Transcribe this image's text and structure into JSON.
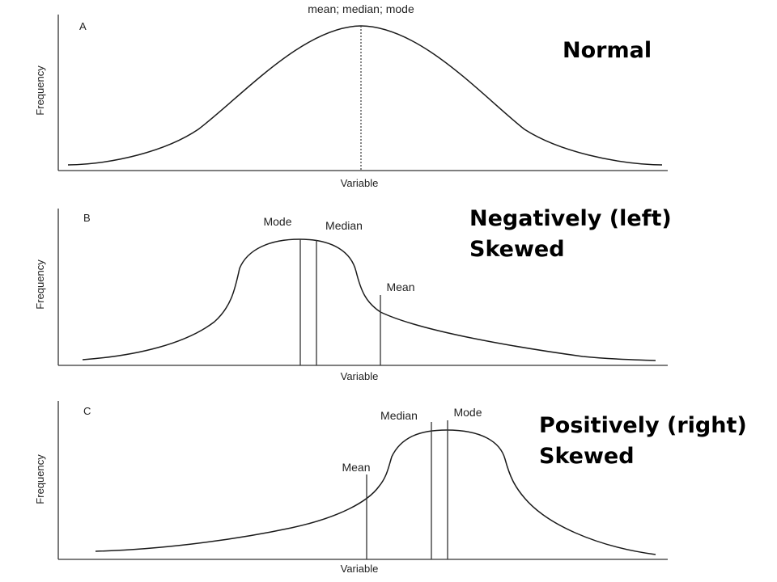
{
  "panels": [
    {
      "id": "A",
      "letter": "A",
      "y_label": "Frequency",
      "x_label": "Variable",
      "marker_caption": "mean; median; mode",
      "annotation": [
        "Normal"
      ]
    },
    {
      "id": "B",
      "letter": "B",
      "y_label": "Frequency",
      "x_label": "Variable",
      "markers": [
        "Mode",
        "Median",
        "Mean"
      ],
      "annotation": [
        "Negatively (left)",
        "Skewed"
      ]
    },
    {
      "id": "C",
      "letter": "C",
      "y_label": "Frequency",
      "x_label": "Variable",
      "markers": [
        "Mean",
        "Median",
        "Mode"
      ],
      "annotation": [
        "Positively (right)",
        "Skewed"
      ]
    }
  ],
  "colors": {
    "line": "#1a1a1a",
    "background": "#ffffff",
    "annotation": "#000000"
  }
}
